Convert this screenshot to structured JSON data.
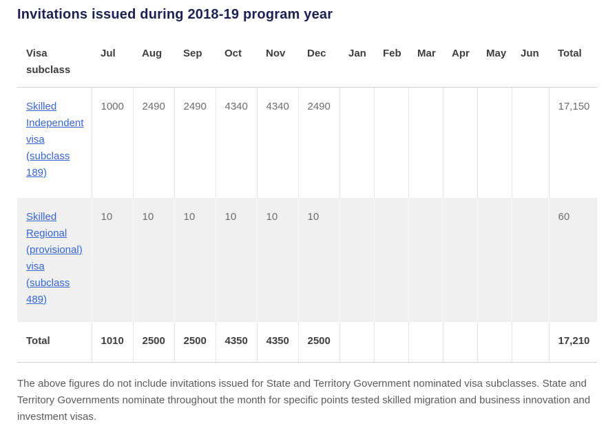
{
  "page": {
    "title": "Invitations issued during 2018-19 program year",
    "footnote": "The above figures do not include invitations issued for State and Territory Government nominated visa subclasses. State and Territory Governments nominate throughout the month for specific points tested skilled migration and business innovation and investment visas."
  },
  "colors": {
    "title_text": "#1b2150",
    "link_blue": "#3566d3",
    "header_text": "#3d3d3d",
    "body_text": "#6c6c6c",
    "shaded_row_bg": "#f0f0f0",
    "border_strong": "#cfcfcf",
    "border_light": "#e3e3e3"
  },
  "table": {
    "columns": [
      "Visa subclass",
      "Jul",
      "Aug",
      "Sep",
      "Oct",
      "Nov",
      "Dec",
      "Jan",
      "Feb",
      "Mar",
      "Apr",
      "May",
      "Jun",
      "Total"
    ],
    "rows": [
      {
        "label": "Skilled Independent visa (subclass 189)",
        "is_link": true,
        "row_type": "data",
        "values": [
          "1000",
          "2490",
          "2490",
          "4340",
          "4340",
          "2490",
          "",
          "",
          "",
          "",
          "",
          "",
          "17,150"
        ]
      },
      {
        "label": "Skilled Regional (provisional) visa (subclass 489)",
        "is_link": true,
        "row_type": "data",
        "values": [
          "10",
          "10",
          "10",
          "10",
          "10",
          "10",
          "",
          "",
          "",
          "",
          "",
          "",
          "60"
        ]
      },
      {
        "label": "Total",
        "is_link": false,
        "row_type": "total",
        "values": [
          "1010",
          "2500",
          "2500",
          "4350",
          "4350",
          "2500",
          "",
          "",
          "",
          "",
          "",
          "",
          "17,210"
        ]
      }
    ]
  }
}
